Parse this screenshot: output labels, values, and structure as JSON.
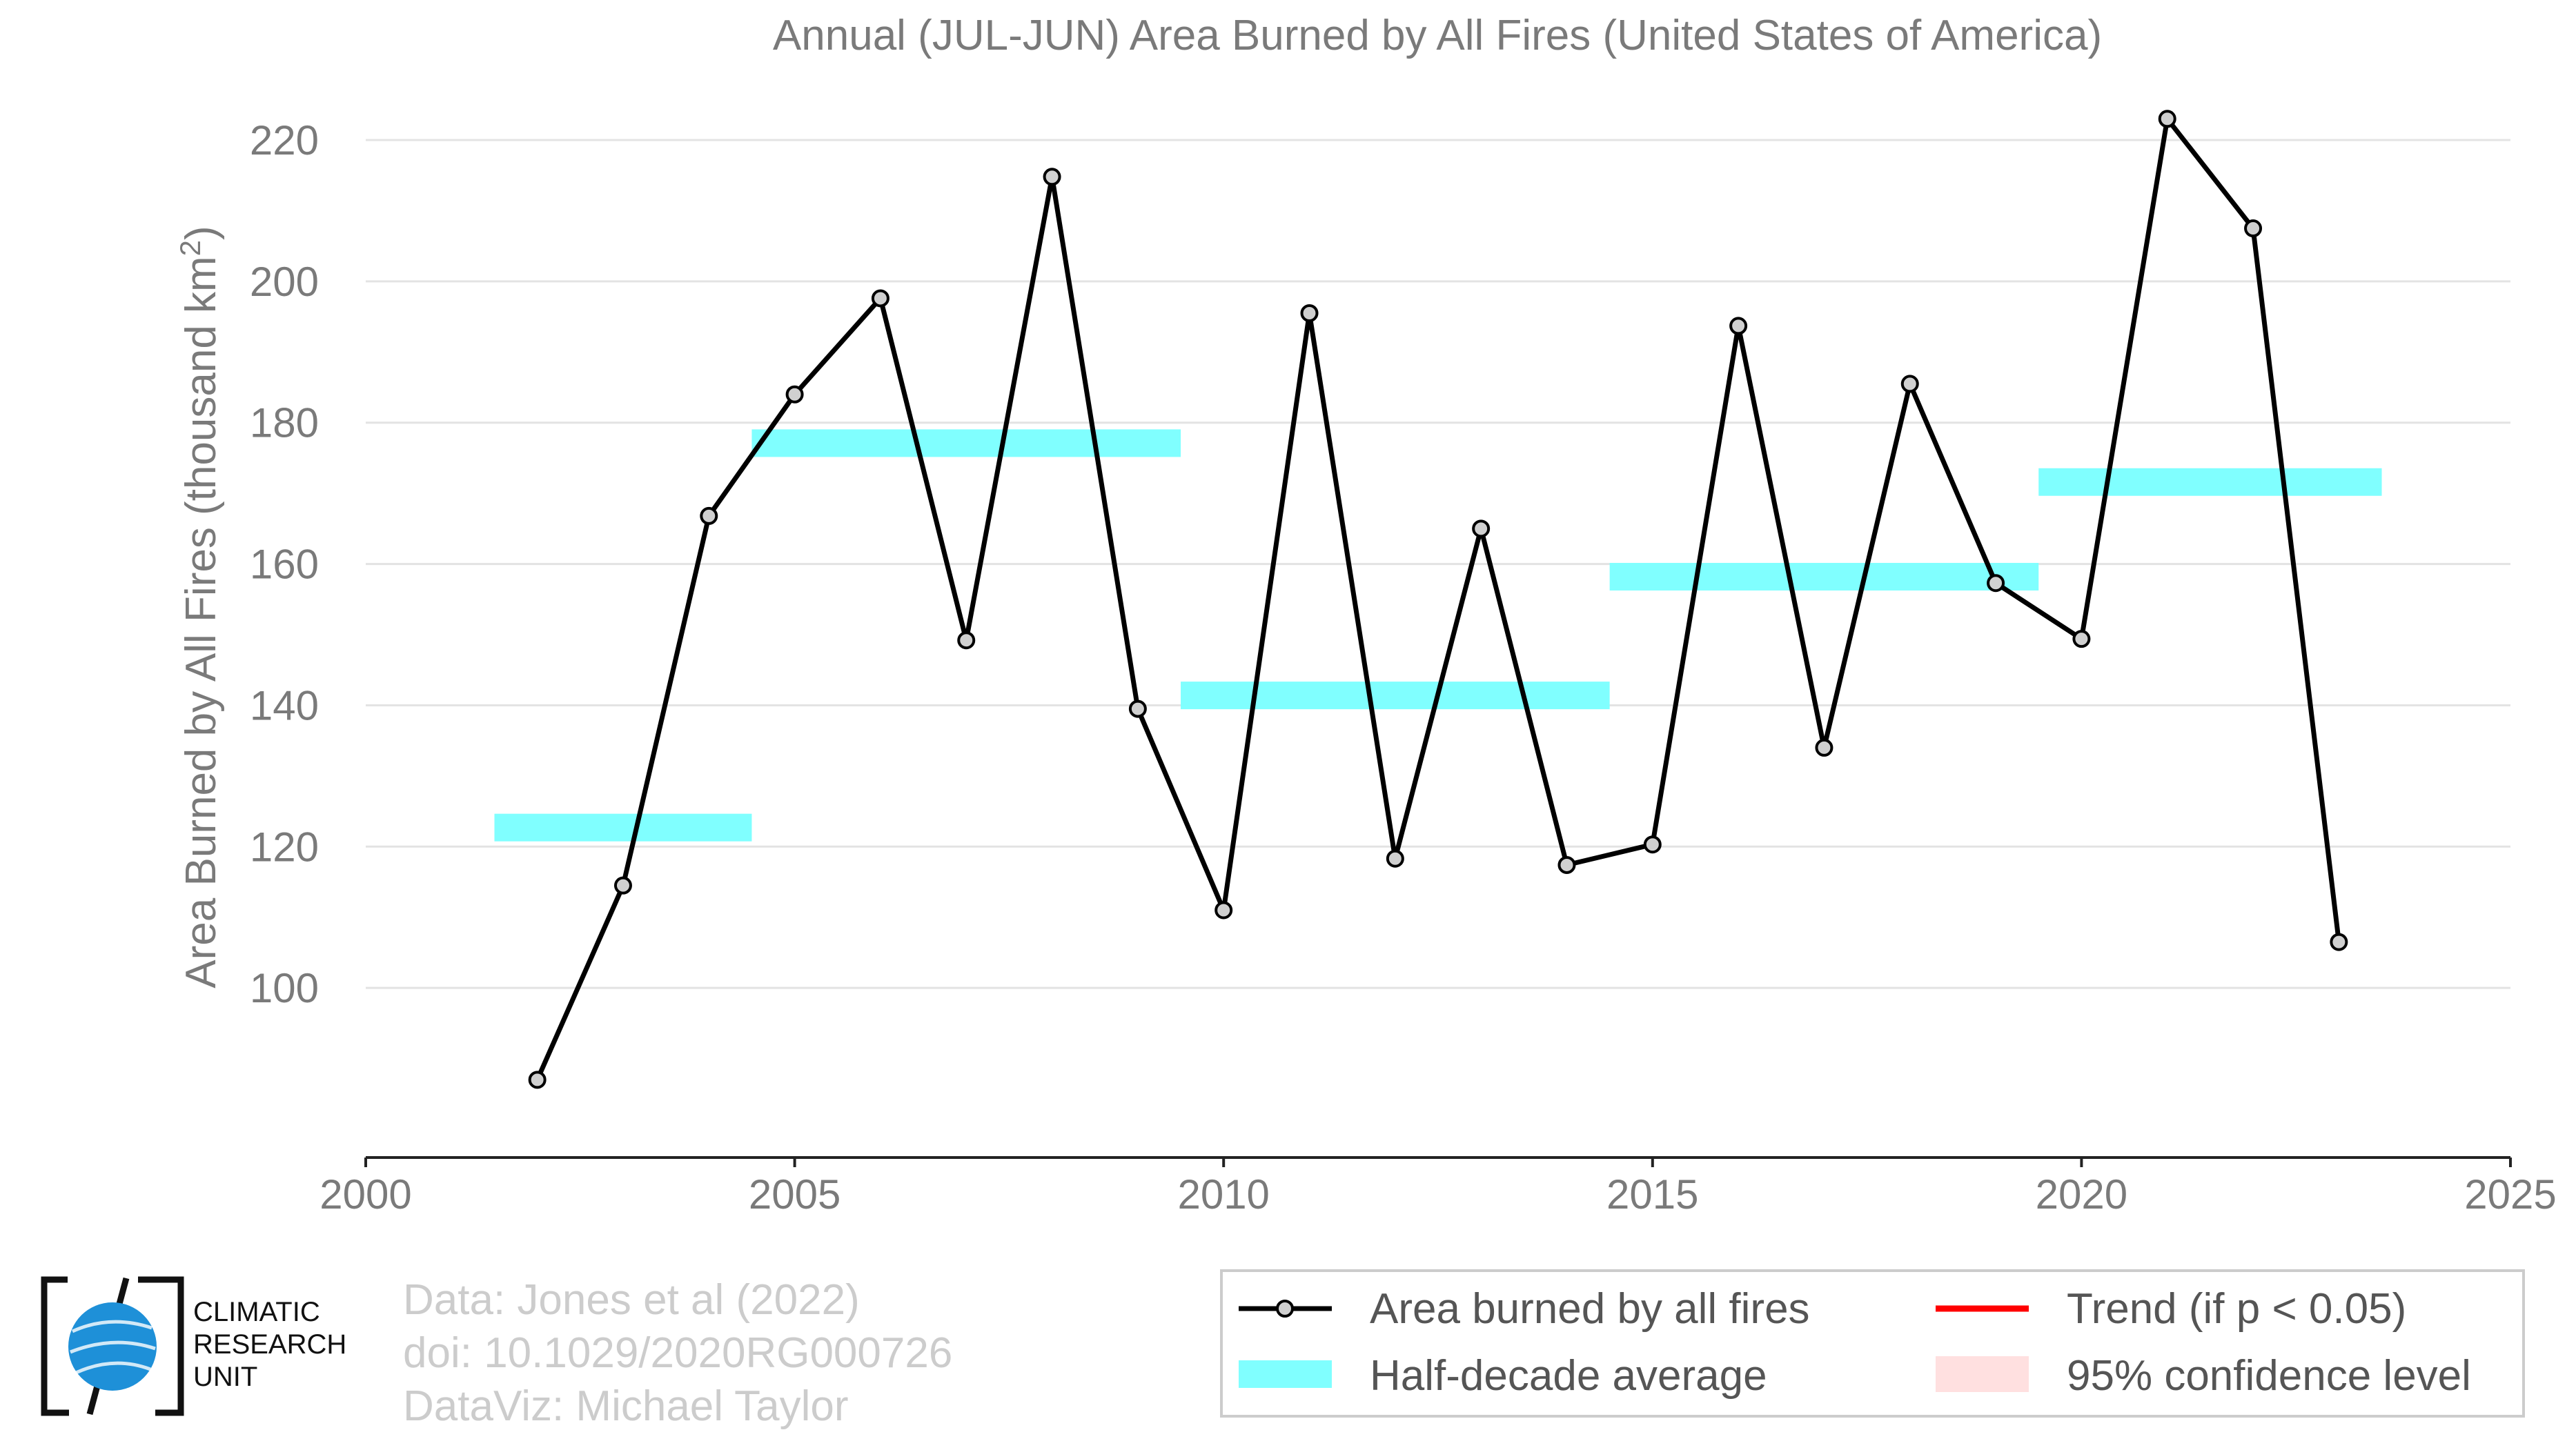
{
  "chart_data": {
    "type": "line",
    "title": "Annual (JUL-JUN) Area Burned by All Fires (United States of America)",
    "xlabel": "",
    "ylabel": "Area Burned by All Fires (thousand km",
    "ylabel_sup": "2",
    "ylabel_close": ")",
    "xlim": [
      2000,
      2025
    ],
    "ylim": [
      76,
      220
    ],
    "x_ticks": [
      2000,
      2005,
      2010,
      2015,
      2020,
      2025
    ],
    "y_ticks": [
      100,
      120,
      140,
      160,
      180,
      200,
      220
    ],
    "grid": "horizontal",
    "legend_position": "bottom-right",
    "series": [
      {
        "name": "Area burned by all fires",
        "color": "#000000",
        "marker_fill": "#d0d0d0",
        "x": [
          2002,
          2003,
          2004,
          2005,
          2006,
          2007,
          2008,
          2009,
          2010,
          2011,
          2012,
          2013,
          2014,
          2015,
          2016,
          2017,
          2018,
          2019,
          2020,
          2021,
          2022,
          2023
        ],
        "y": [
          87.0,
          114.5,
          166.8,
          184.0,
          197.6,
          149.2,
          214.8,
          139.5,
          111.0,
          195.5,
          118.3,
          165.0,
          117.4,
          120.3,
          193.7,
          134.0,
          185.5,
          157.3,
          149.4,
          223.0,
          207.5,
          106.5
        ]
      }
    ],
    "half_decade_averages": {
      "name": "Half-decade average",
      "color": "#80ffff",
      "segments": [
        {
          "x_start": 2001.5,
          "x_end": 2004.5,
          "y": 122.7
        },
        {
          "x_start": 2004.5,
          "x_end": 2009.5,
          "y": 177.1
        },
        {
          "x_start": 2009.5,
          "x_end": 2014.5,
          "y": 141.4
        },
        {
          "x_start": 2014.5,
          "x_end": 2019.5,
          "y": 158.2
        },
        {
          "x_start": 2019.5,
          "x_end": 2023.5,
          "y": 171.6
        }
      ]
    },
    "legend": {
      "entries": [
        {
          "label": "Area burned by all fires",
          "kind": "line-marker",
          "color": "#000000"
        },
        {
          "label": "Trend (if p < 0.05)",
          "kind": "line",
          "color": "#ff0000"
        },
        {
          "label": "Half-decade average",
          "kind": "band",
          "color": "#80ffff"
        },
        {
          "label": "95% confidence level",
          "kind": "band",
          "color": "#ffe0e0"
        }
      ]
    }
  },
  "credits": {
    "line1": "Data: Jones et al (2022)",
    "line2": "doi: 10.1029/2020RG000726",
    "line3": "DataViz: Michael Taylor"
  },
  "logo": {
    "line1": "CLIMATIC",
    "line2": "RESEARCH",
    "line3": "UNIT",
    "globe_color": "#1e90d8"
  }
}
